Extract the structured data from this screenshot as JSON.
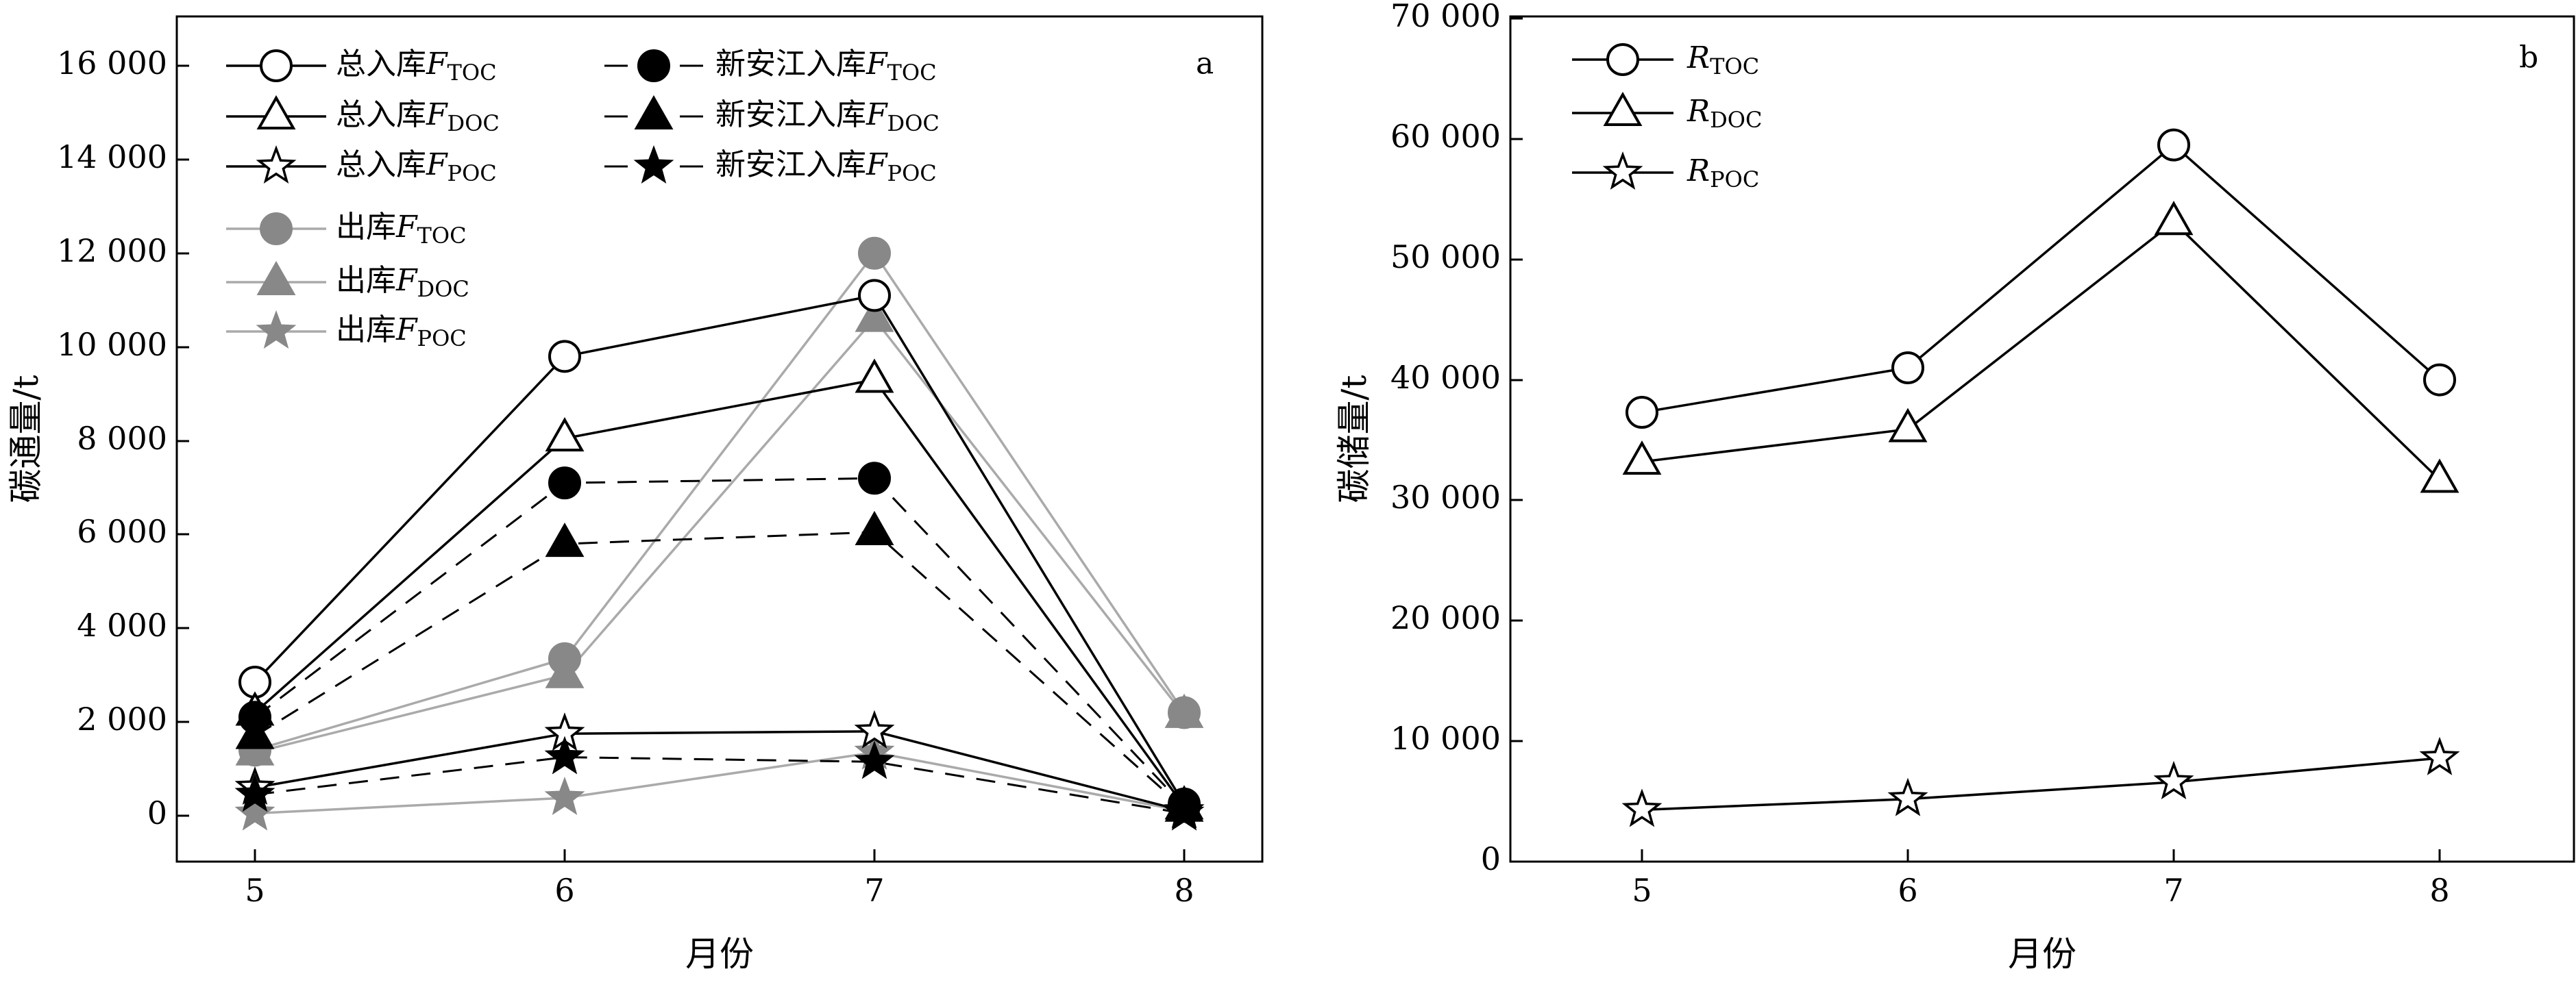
{
  "chart_data": [
    {
      "panel_label": "a",
      "type": "line",
      "xlabel": "月份",
      "ylabel": "碳通量/t",
      "categories": [
        "5",
        "6",
        "7",
        "8"
      ],
      "ylim": [
        -1000,
        17000
      ],
      "yticks": [
        0,
        2000,
        4000,
        6000,
        8000,
        10000,
        12000,
        14000,
        16000
      ],
      "ytick_labels": [
        "0",
        "2 000",
        "4 000",
        "6 000",
        "8 000",
        "10 000",
        "12 000",
        "14 000",
        "16 000"
      ],
      "legend_position": "top",
      "series": [
        {
          "name": "总入库F",
          "sub": "TOC",
          "marker": "circle",
          "fill": "none",
          "line": "solid",
          "color": "#000000",
          "values": [
            2850,
            9800,
            11100,
            250
          ]
        },
        {
          "name": "总入库F",
          "sub": "DOC",
          "marker": "triangle",
          "fill": "none",
          "line": "solid",
          "color": "#000000",
          "values": [
            2200,
            8050,
            9300,
            200
          ]
        },
        {
          "name": "总入库F",
          "sub": "POC",
          "marker": "star",
          "fill": "none",
          "line": "solid",
          "color": "#000000",
          "values": [
            600,
            1750,
            1800,
            100
          ]
        },
        {
          "name": "新安江入库F",
          "sub": "TOC",
          "marker": "circle",
          "fill": "black",
          "line": "dashed",
          "color": "#000000",
          "values": [
            2100,
            7100,
            7200,
            200
          ]
        },
        {
          "name": "新安江入库F",
          "sub": "DOC",
          "marker": "triangle",
          "fill": "black",
          "line": "dashed",
          "color": "#000000",
          "values": [
            1700,
            5800,
            6050,
            150
          ]
        },
        {
          "name": "新安江入库F",
          "sub": "POC",
          "marker": "star",
          "fill": "black",
          "line": "dashed",
          "color": "#000000",
          "values": [
            450,
            1250,
            1150,
            50
          ]
        },
        {
          "name": "出库F",
          "sub": "TOC",
          "marker": "circle",
          "fill": "gray",
          "line": "solid-gray",
          "color": "#888888",
          "values": [
            1400,
            3350,
            12000,
            2200
          ]
        },
        {
          "name": "出库F",
          "sub": "DOC",
          "marker": "triangle",
          "fill": "gray",
          "line": "solid-gray",
          "color": "#888888",
          "values": [
            1350,
            3000,
            10600,
            2150
          ]
        },
        {
          "name": "出库F",
          "sub": "POC",
          "marker": "star",
          "fill": "gray",
          "line": "solid-gray",
          "color": "#888888",
          "values": [
            50,
            380,
            1350,
            100
          ]
        }
      ]
    },
    {
      "panel_label": "b",
      "type": "line",
      "xlabel": "月份",
      "ylabel": "碳储量/t",
      "categories": [
        "5",
        "6",
        "7",
        "8"
      ],
      "ylim": [
        0,
        70000
      ],
      "yticks": [
        0,
        10000,
        20000,
        30000,
        40000,
        50000,
        60000,
        70000
      ],
      "ytick_labels": [
        "0",
        "10 000",
        "20 000",
        "30 000",
        "40 000",
        "50 000",
        "60 000",
        "70 000"
      ],
      "legend_position": "top-left",
      "series": [
        {
          "name": "R",
          "sub": "TOC",
          "marker": "circle",
          "fill": "none",
          "line": "solid",
          "color": "#000000",
          "values": [
            37300,
            41000,
            59500,
            40000
          ]
        },
        {
          "name": "R",
          "sub": "DOC",
          "marker": "triangle",
          "fill": "none",
          "line": "solid",
          "color": "#000000",
          "values": [
            33200,
            35900,
            53100,
            31700
          ]
        },
        {
          "name": "R",
          "sub": "POC",
          "marker": "star",
          "fill": "none",
          "line": "solid",
          "color": "#000000",
          "values": [
            4300,
            5200,
            6600,
            8600
          ]
        }
      ]
    }
  ]
}
